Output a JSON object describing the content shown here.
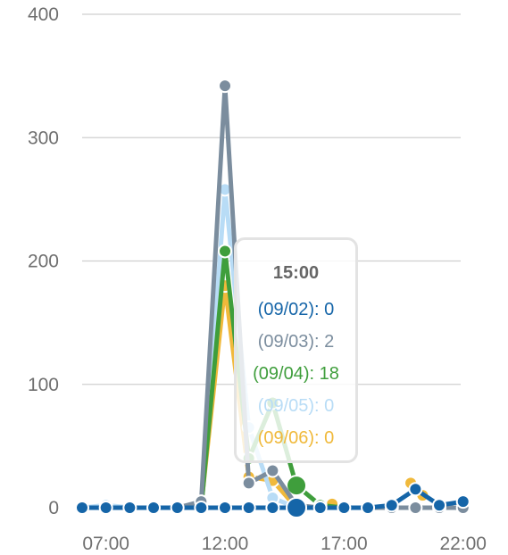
{
  "chart_data": {
    "type": "line",
    "x": [
      "06:00",
      "07:00",
      "08:00",
      "09:00",
      "10:00",
      "11:00",
      "12:00",
      "13:00",
      "14:00",
      "15:00",
      "16:00",
      "17:00",
      "18:00",
      "19:00",
      "20:00",
      "21:00",
      "22:00"
    ],
    "x_tick_labels": [
      "07:00",
      "12:00",
      "17:00",
      "22:00"
    ],
    "ylim": [
      0,
      400
    ],
    "y_ticks": [
      0,
      100,
      200,
      300,
      400
    ],
    "grid": true,
    "series": [
      {
        "name": "(09/06)",
        "color": "#f0b93b",
        "values": [
          0,
          0,
          0,
          0,
          0,
          2,
          180,
          25,
          22,
          0,
          0,
          0,
          0,
          0,
          0,
          0,
          0
        ],
        "extra": [
          [
            10.5,
            3
          ],
          [
            13.8,
            20
          ],
          [
            14.3,
            10
          ]
        ]
      },
      {
        "name": "(09/05)",
        "color": "#b8dcf6",
        "values": [
          0,
          2,
          0,
          0,
          0,
          0,
          258,
          65,
          8,
          0,
          0,
          0,
          0,
          0,
          0,
          0,
          0
        ],
        "extra": []
      },
      {
        "name": "(09/04)",
        "color": "#3f9e3c",
        "values": [
          0,
          0,
          0,
          0,
          0,
          0,
          208,
          40,
          85,
          18,
          2,
          0,
          0,
          0,
          0,
          0,
          0
        ],
        "extra": []
      },
      {
        "name": "(09/03)",
        "color": "#7b8d9e",
        "values": [
          0,
          0,
          0,
          0,
          0,
          5,
          342,
          20,
          30,
          2,
          0,
          0,
          0,
          0,
          0,
          0,
          0
        ],
        "extra": []
      },
      {
        "name": "(09/02)",
        "color": "#1565a8",
        "values": [
          0,
          0,
          0,
          0,
          0,
          0,
          0,
          0,
          0,
          0,
          0,
          0,
          0,
          2,
          15,
          2,
          5
        ],
        "extra": []
      }
    ],
    "highlight_index": 9
  },
  "tooltip": {
    "title": "15:00",
    "rows": [
      {
        "text": "(09/02): 0",
        "color": "#1565a8"
      },
      {
        "text": "(09/03): 2",
        "color": "#7b8d9e"
      },
      {
        "text": "(09/04): 18",
        "color": "#3f9e3c"
      },
      {
        "text": "(09/05): 0",
        "color": "#b8dcf6"
      },
      {
        "text": "(09/06): 0",
        "color": "#f0b93b"
      }
    ]
  }
}
